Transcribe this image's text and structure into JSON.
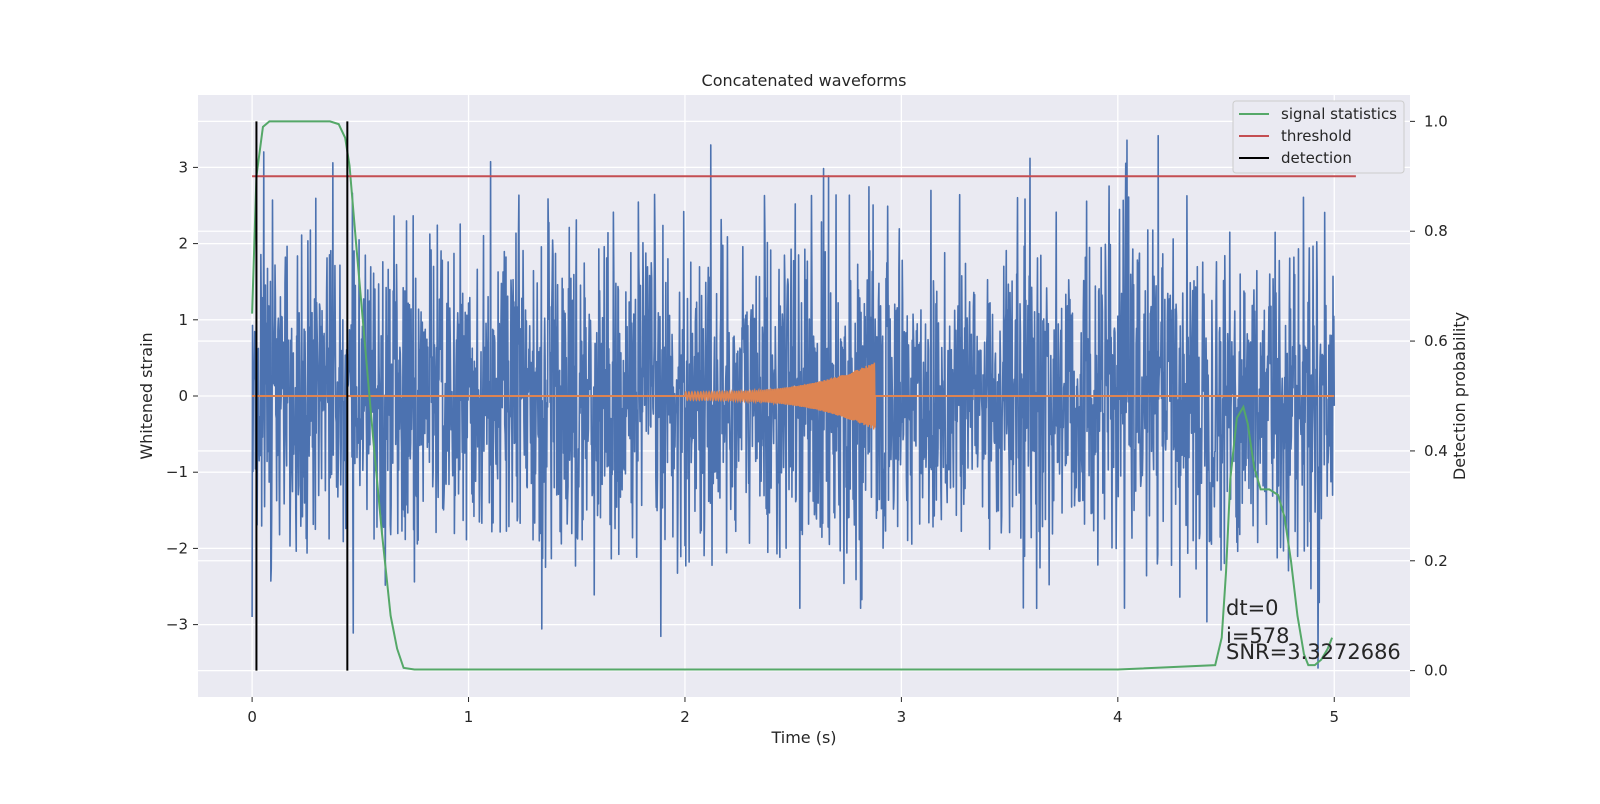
{
  "chart_data": {
    "type": "line",
    "title": "Concatenated waveforms",
    "xlabel": "Time (s)",
    "ylabel": "Whitened strain",
    "ylabel_right": "Detection probability",
    "xlim": [
      -0.25,
      5.35
    ],
    "ylim_left": [
      -3.95,
      3.95
    ],
    "ylim_right": [
      -0.048,
      1.048
    ],
    "x_ticks": [
      0,
      1,
      2,
      3,
      4,
      5
    ],
    "y_ticks_left": [
      -3,
      -2,
      -1,
      0,
      1,
      2,
      3
    ],
    "y_ticks_right": [
      0.0,
      0.2,
      0.4,
      0.6,
      0.8,
      1.0
    ],
    "x_tick_labels": [
      "0",
      "1",
      "2",
      "3",
      "4",
      "5"
    ],
    "y_tick_labels_left": [
      "−3",
      "−2",
      "−1",
      "0",
      "1",
      "2",
      "3"
    ],
    "y_tick_labels_right": [
      "0.0",
      "0.2",
      "0.4",
      "0.6",
      "0.8",
      "1.0"
    ],
    "grid": true,
    "legend_position": "top-right",
    "colors": {
      "background": "#eaeaf2",
      "grid": "#ffffff",
      "noise": "#4c72b0",
      "template": "#dd8452",
      "signal_statistics": "#55a868",
      "threshold": "#c44e52",
      "detection": "#000000"
    },
    "series": [
      {
        "name": "signal statistics",
        "axis": "right",
        "x": [
          0.0,
          0.02,
          0.05,
          0.08,
          0.12,
          0.2,
          0.3,
          0.36,
          0.4,
          0.43,
          0.45,
          0.48,
          0.52,
          0.56,
          0.6,
          0.64,
          0.67,
          0.7,
          0.75,
          1.0,
          2.0,
          3.0,
          4.0,
          4.45,
          4.48,
          4.5,
          4.52,
          4.55,
          4.58,
          4.6,
          4.63,
          4.66,
          4.7,
          4.74,
          4.77,
          4.8,
          4.83,
          4.86,
          4.88,
          4.91,
          4.94,
          4.97,
          4.99
        ],
        "y": [
          0.65,
          0.9,
          0.99,
          1.0,
          1.0,
          1.0,
          1.0,
          1.0,
          0.995,
          0.97,
          0.92,
          0.78,
          0.6,
          0.42,
          0.25,
          0.1,
          0.04,
          0.005,
          0.002,
          0.002,
          0.002,
          0.002,
          0.002,
          0.01,
          0.06,
          0.18,
          0.35,
          0.46,
          0.48,
          0.45,
          0.37,
          0.33,
          0.33,
          0.32,
          0.28,
          0.2,
          0.1,
          0.03,
          0.01,
          0.01,
          0.02,
          0.04,
          0.06
        ]
      },
      {
        "name": "threshold",
        "axis": "right",
        "x": [
          0.0,
          5.1
        ],
        "y": [
          0.9,
          0.9
        ]
      },
      {
        "name": "detection",
        "axis": "right",
        "type": "vlines",
        "x": [
          0.02,
          0.44
        ],
        "ymin": 0.0,
        "ymax": 1.0
      }
    ],
    "noise_envelope": {
      "axis": "left",
      "x_range": [
        0,
        5
      ],
      "approx_range": [
        -3.6,
        3.5
      ],
      "description_values": {
        "peak_max": 3.5,
        "peak_min": -3.6
      }
    },
    "template": {
      "axis": "left",
      "x_start": 2.0,
      "x_end": 2.88,
      "max_amplitude": 0.45
    },
    "annotations": [
      "dt=0",
      "i=578",
      "SNR=3.3272686"
    ]
  }
}
